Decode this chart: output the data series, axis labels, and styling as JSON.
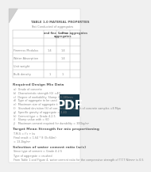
{
  "bg_color": "#f0f0f0",
  "page_color": "#ffffff",
  "text_color": "#888888",
  "bold_color": "#666666",
  "pdf_bg": "#1a3a4a",
  "pdf_text": "#ffffff",
  "title_text": "TABLE 1.0 MATERIAL PROPERTIES",
  "subtitle_text": "Test Conducted of aggregates",
  "col_headers": [
    "and fine",
    "Coarse\naggregates",
    "Fine aggregates"
  ],
  "row_labels": [
    "Fineness Modulus",
    "Water Absorption",
    "Unit weight",
    "Bulk density"
  ],
  "table_data": [
    [
      "",
      "1.4",
      "1.4"
    ],
    [
      "",
      "",
      "1.4"
    ],
    [
      "",
      "",
      ""
    ],
    [
      "",
      "1",
      "1"
    ]
  ],
  "s2_title": "Required Design Mix Data",
  "s2_items": [
    "a)  Grade of concrete",
    "b)  Characteristic strength (G) =40",
    "c)  Degree of workability: Slump: 60-180mm",
    "d)  Type of aggregate to be used = crushed",
    "e)  Maximum size of aggregate to be used = 20",
    "f)   Standard deviation (S) of compressive strength of concrete samples =8 Mpa",
    "g)  Specific gravity of aggregate = 2.40",
    "h)  Cement type = Grade 4.2.5",
    "i)   Slump value with = 60",
    "j)   Maximum cement required for durability = 300kg/m³"
  ],
  "s3_title": "Target Mean Strength for mix proportioning",
  "s3_items": [
    "T.M.S = f’c + ks",
    "Final result = 1.64 * 8 (0=64m)",
    "= 13.2kg/m³"
  ],
  "s4_title": "Selection of water cement ratio (w/c)",
  "s4_items": [
    "Since type of cement = Grade 4.2.5",
    "Type of aggregate = crushed",
    "From Table 1 and Figure 4, water cement ratio for the compressive strength of T.T.T N/mm² is 0.5"
  ],
  "fold_size": 0.08,
  "font_size_tiny": 2.8,
  "font_size_small": 3.0,
  "font_size_bold": 3.4
}
